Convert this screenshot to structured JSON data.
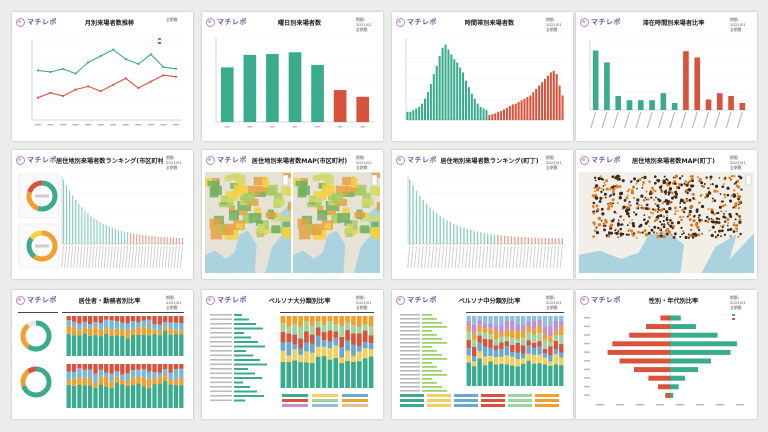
{
  "brand": {
    "logo_text": "マチレポ"
  },
  "colors": {
    "green": "#3aab8c",
    "red": "#d9523c",
    "panel": "#ffffff",
    "background": "#ececec",
    "logo": "#a78bd4"
  },
  "panels": [
    {
      "id": "monthly",
      "title": "月別来場者数推移",
      "meta1": "全期間",
      "meta2": ""
    },
    {
      "id": "weekday",
      "title": "曜日別来場者数",
      "meta1": "期間: 2021/01",
      "meta2": "全期間"
    },
    {
      "id": "hourly",
      "title": "時間帯別来場者数",
      "meta1": "期間: 2021/01",
      "meta2": "全期間"
    },
    {
      "id": "stay",
      "title": "滞在時間別来場者比率",
      "meta1": "期間: 2021/01",
      "meta2": "全期間"
    },
    {
      "id": "city-rank",
      "title": "居住地別来場者数ランキング(市区町村)",
      "meta1": "期間: 2021/01",
      "meta2": "全期間"
    },
    {
      "id": "city-map",
      "title": "居住地別来場者数MAP(市区町村)",
      "meta1": "期間: 2021/01",
      "meta2": "全期間"
    },
    {
      "id": "town-rank",
      "title": "居住地別来場者数ランキング(町丁)",
      "meta1": "期間: 2021/01",
      "meta2": "全期間"
    },
    {
      "id": "town-map",
      "title": "居住地別来場者数MAP(町丁)",
      "meta1": "期間: 2021/01",
      "meta2": "全期間"
    },
    {
      "id": "residence",
      "title": "居住者・勤務者別比率",
      "meta1": "期間: 2021/01",
      "meta2": "全期間"
    },
    {
      "id": "persona-major",
      "title": "ペルソナ大分類別比率",
      "meta1": "期間: 2021/01",
      "meta2": "全期間"
    },
    {
      "id": "persona-mid",
      "title": "ペルソナ中分類別比率",
      "meta1": "期間: 2021/01",
      "meta2": "全期間"
    },
    {
      "id": "gender-age",
      "title": "性別・年代別比率",
      "meta1": "期間: 2021/01",
      "meta2": "全期間"
    }
  ],
  "chart_data": [
    {
      "type": "line",
      "chart": "monthly",
      "x": [
        "1",
        "2",
        "3",
        "4",
        "5",
        "6",
        "7",
        "8",
        "9",
        "10",
        "11",
        "12"
      ],
      "series": [
        {
          "name": "",
          "color": "#3aab8c",
          "values": [
            62,
            60,
            64,
            58,
            72,
            80,
            88,
            76,
            70,
            82,
            66,
            64
          ]
        },
        {
          "name": "",
          "color": "#d9523c",
          "values": [
            28,
            34,
            30,
            38,
            42,
            36,
            44,
            52,
            40,
            48,
            56,
            54
          ]
        }
      ],
      "ylim": [
        0,
        100
      ]
    },
    {
      "type": "bar",
      "chart": "weekday",
      "categories": [
        "1",
        "2",
        "3",
        "4",
        "5",
        "6",
        "7"
      ],
      "values": [
        65,
        80,
        81,
        83,
        68,
        38,
        30
      ],
      "colors": [
        "#3aab8c",
        "#3aab8c",
        "#3aab8c",
        "#3aab8c",
        "#3aab8c",
        "#d9523c",
        "#d9523c"
      ],
      "ylim": [
        0,
        100
      ]
    },
    {
      "type": "bar",
      "chart": "hourly",
      "green_values": [
        10,
        10,
        12,
        14,
        16,
        20,
        26,
        34,
        44,
        56,
        66,
        78,
        88,
        92,
        86,
        80,
        74,
        70,
        64,
        58,
        48,
        40,
        32,
        26,
        20,
        16,
        14,
        12
      ],
      "red_values": [
        6,
        7,
        8,
        10,
        11,
        13,
        15,
        17,
        19,
        20,
        22,
        24,
        26,
        28,
        30,
        34,
        38,
        42,
        46,
        50,
        54,
        58,
        60,
        56,
        42,
        30
      ],
      "ylim": [
        0,
        100
      ]
    },
    {
      "type": "bar",
      "chart": "stay",
      "categories": [
        "1",
        "2",
        "3",
        "4",
        "5",
        "6",
        "7",
        "8",
        "9",
        "10",
        "11",
        "12",
        "13",
        "14"
      ],
      "values": [
        85,
        68,
        20,
        14,
        14,
        14,
        24,
        10,
        84,
        75,
        15,
        24,
        20,
        10
      ],
      "colors": [
        "#3aab8c",
        "#3aab8c",
        "#3aab8c",
        "#3aab8c",
        "#3aab8c",
        "#3aab8c",
        "#3aab8c",
        "#3aab8c",
        "#d9523c",
        "#d9523c",
        "#d9523c",
        "#d9523c",
        "#d9523c",
        "#d9523c"
      ],
      "ylim": [
        0,
        100
      ]
    },
    {
      "type": "bar",
      "chart": "gender-age",
      "categories": [
        "1",
        "2",
        "3",
        "4",
        "5",
        "6",
        "7",
        "8",
        "9",
        "10"
      ],
      "male": [
        4,
        10,
        18,
        30,
        42,
        52,
        48,
        34,
        20,
        8
      ],
      "female": [
        3,
        8,
        14,
        26,
        38,
        56,
        62,
        44,
        24,
        10
      ]
    }
  ]
}
